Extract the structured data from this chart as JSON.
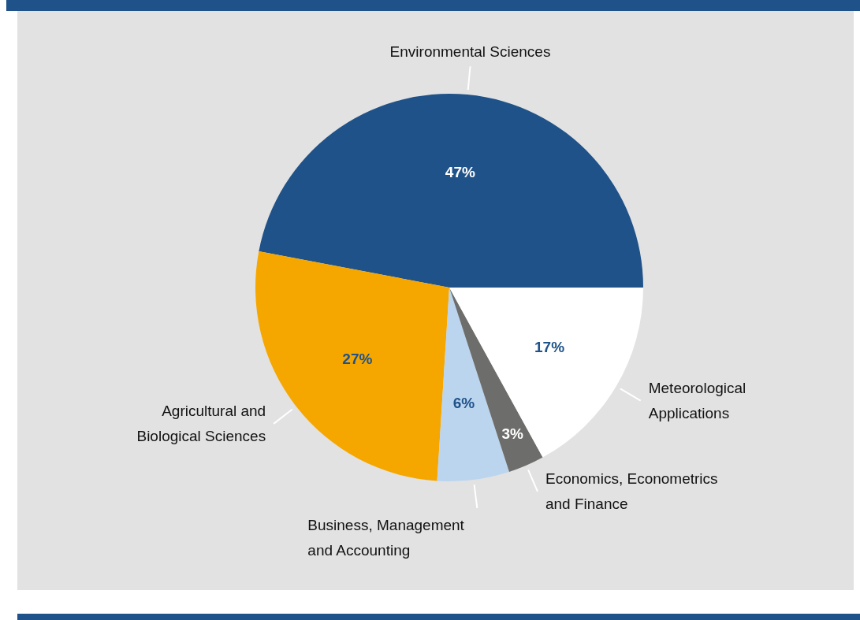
{
  "chart_data": {
    "type": "pie",
    "categories": [
      "Environmental Sciences",
      "Agricultural and Biological Sciences",
      "Business, Management and Accounting",
      "Economics, Econometrics and Finance",
      "Meteorological Applications"
    ],
    "values": [
      47,
      27,
      6,
      3,
      17
    ],
    "value_labels": [
      "47%",
      "27%",
      "6%",
      "3%",
      "17%"
    ],
    "colors": [
      "#1f5289",
      "#f5a700",
      "#bcd5ef",
      "#6d6d6b",
      "#ffffff"
    ]
  }
}
